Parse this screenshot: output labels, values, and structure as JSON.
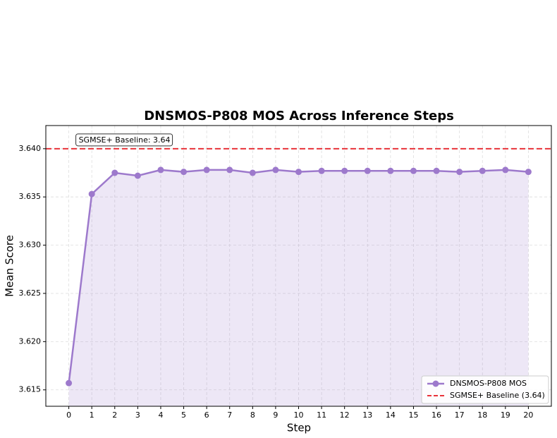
{
  "chart_data": {
    "type": "line",
    "title": "DNSMOS-P808 MOS Across Inference Steps",
    "xlabel": "Step",
    "ylabel": "Mean Score",
    "x": [
      0,
      1,
      2,
      3,
      4,
      5,
      6,
      7,
      8,
      9,
      10,
      11,
      12,
      13,
      14,
      15,
      16,
      17,
      18,
      19,
      20
    ],
    "series": [
      {
        "name": "DNSMOS-P808 MOS",
        "color": "#9d79cc",
        "values": [
          3.6157,
          3.6353,
          3.6375,
          3.6372,
          3.6378,
          3.6376,
          3.6378,
          3.6378,
          3.6375,
          3.6378,
          3.6376,
          3.6377,
          3.6377,
          3.6377,
          3.6377,
          3.6377,
          3.6377,
          3.6376,
          3.6377,
          3.6378,
          3.6376
        ]
      }
    ],
    "baseline": {
      "value": 3.64,
      "name": "SGMSE+ Baseline (3.64)",
      "color": "#e8333a",
      "annotation": "SGMSE+ Baseline: 3.64"
    },
    "xlim": [
      -1,
      21
    ],
    "ylim": [
      3.6133,
      3.6424
    ],
    "xticks": [
      0,
      1,
      2,
      3,
      4,
      5,
      6,
      7,
      8,
      9,
      10,
      11,
      12,
      13,
      14,
      15,
      16,
      17,
      18,
      19,
      20
    ],
    "yticks": [
      {
        "value": 3.615,
        "label": "3.615"
      },
      {
        "value": 3.62,
        "label": "3.620"
      },
      {
        "value": 3.625,
        "label": "3.625"
      },
      {
        "value": 3.63,
        "label": "3.630"
      },
      {
        "value": 3.635,
        "label": "3.635"
      },
      {
        "value": 3.64,
        "label": "3.640"
      }
    ],
    "grid": true,
    "legend": "lower right"
  }
}
